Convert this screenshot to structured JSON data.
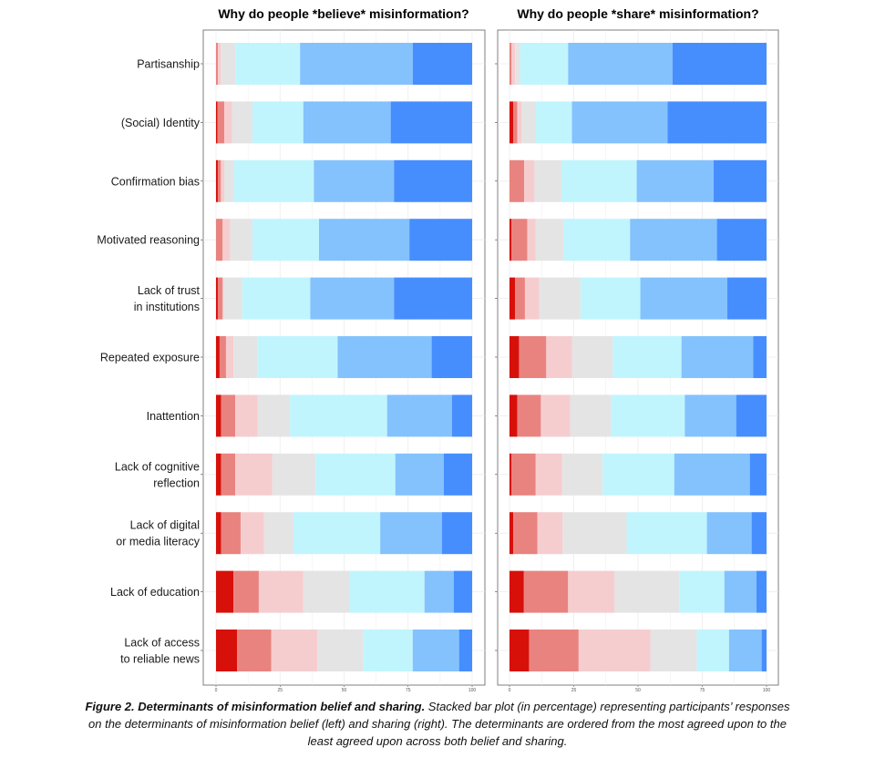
{
  "chart_data": [
    {
      "type": "bar",
      "orientation": "horizontal",
      "stacked": true,
      "title": "Why do people *believe* misinformation?",
      "categories": [
        "Partisanship",
        "(Social) Identity",
        "Confirmation bias",
        "Motivated reasoning",
        "Lack of trust\nin institutions",
        "Repeated exposure",
        "Inattention",
        "Lack of cognitive\nreflection",
        "Lack of digital\nor media literacy",
        "Lack of education",
        "Lack of access\nto reliable news"
      ],
      "series": [
        {
          "values": [
            0,
            0.6,
            0.7,
            0,
            0.7,
            1.4,
            2.0,
            2.0,
            2.0,
            6.8,
            8.2
          ]
        },
        {
          "values": [
            0.7,
            2.6,
            1.2,
            2.6,
            1.9,
            2.5,
            5.5,
            5.5,
            7.6,
            9.9,
            13.4
          ]
        },
        {
          "values": [
            1.2,
            3.0,
            1.3,
            3.0,
            0.5,
            2.9,
            8.7,
            14.5,
            9.2,
            17.4,
            18.0
          ]
        },
        {
          "values": [
            5.7,
            8.0,
            3.7,
            8.6,
            7.1,
            9.3,
            12.7,
            16.9,
            11.4,
            18.2,
            17.9
          ]
        },
        {
          "values": [
            25.2,
            19.9,
            31.3,
            26.0,
            26.6,
            31.4,
            37.9,
            31.1,
            33.9,
            29.1,
            19.3
          ]
        },
        {
          "values": [
            44.0,
            34.1,
            31.3,
            35.3,
            32.7,
            36.7,
            25.3,
            18.9,
            24.1,
            11.4,
            18.1
          ]
        },
        {
          "values": [
            23.2,
            31.8,
            30.5,
            24.5,
            30.5,
            15.8,
            7.9,
            11.1,
            11.8,
            7.2,
            5.1
          ]
        }
      ],
      "xlim": [
        0,
        100
      ],
      "xticks": [
        "0",
        "25",
        "50",
        "75",
        "100"
      ],
      "grid": true
    },
    {
      "type": "bar",
      "orientation": "horizontal",
      "stacked": true,
      "title": "Why do people *share* misinformation?",
      "categories": [
        "Partisanship",
        "(Social) Identity",
        "Confirmation bias",
        "Motivated reasoning",
        "Lack of trust\nin institutions",
        "Repeated exposure",
        "Inattention",
        "Lack of cognitive\nreflection",
        "Lack of digital\nor media literacy",
        "Lack of education",
        "Lack of access\nto reliable news"
      ],
      "series": [
        {
          "values": [
            0,
            1.5,
            0,
            0.8,
            2.2,
            3.7,
            3.0,
            0.8,
            1.5,
            5.6,
            7.6
          ]
        },
        {
          "values": [
            0.8,
            1.5,
            5.7,
            6.1,
            3.8,
            10.6,
            9.2,
            9.4,
            9.4,
            17.2,
            19.3
          ]
        },
        {
          "values": [
            1.4,
            1.7,
            4.0,
            3.2,
            5.5,
            10.0,
            11.4,
            10.2,
            9.8,
            18.1,
            27.9
          ]
        },
        {
          "values": [
            1.9,
            5.6,
            10.5,
            10.8,
            16.1,
            15.9,
            15.9,
            15.8,
            24.9,
            25.1,
            18.1
          ]
        },
        {
          "values": [
            18.7,
            14.0,
            29.3,
            26.0,
            23.3,
            26.7,
            28.7,
            27.9,
            31.2,
            17.6,
            12.5
          ]
        },
        {
          "values": [
            40.6,
            37.2,
            29.9,
            33.8,
            33.8,
            27.9,
            20.0,
            29.4,
            17.4,
            12.5,
            12.7
          ]
        },
        {
          "values": [
            36.6,
            38.5,
            20.6,
            19.3,
            15.3,
            5.2,
            11.8,
            6.5,
            5.8,
            3.9,
            1.9
          ]
        }
      ],
      "xlim": [
        0,
        100
      ],
      "xticks": [
        "0",
        "25",
        "50",
        "75",
        "100"
      ],
      "grid": true
    }
  ],
  "colors": [
    "#d7100a",
    "#e98380",
    "#f6cdcf",
    "#e4e4e4",
    "#c0f5fe",
    "#84c2fd",
    "#468efe"
  ],
  "caption": {
    "bold": "Figure 2. Determinants of misinformation belief and sharing.",
    "text": " Stacked bar plot (in percentage) representing participants’ responses on the determinants of misinformation belief (left) and sharing (right). The determinants are ordered from the most agreed upon to the least agreed upon across both belief and sharing."
  }
}
